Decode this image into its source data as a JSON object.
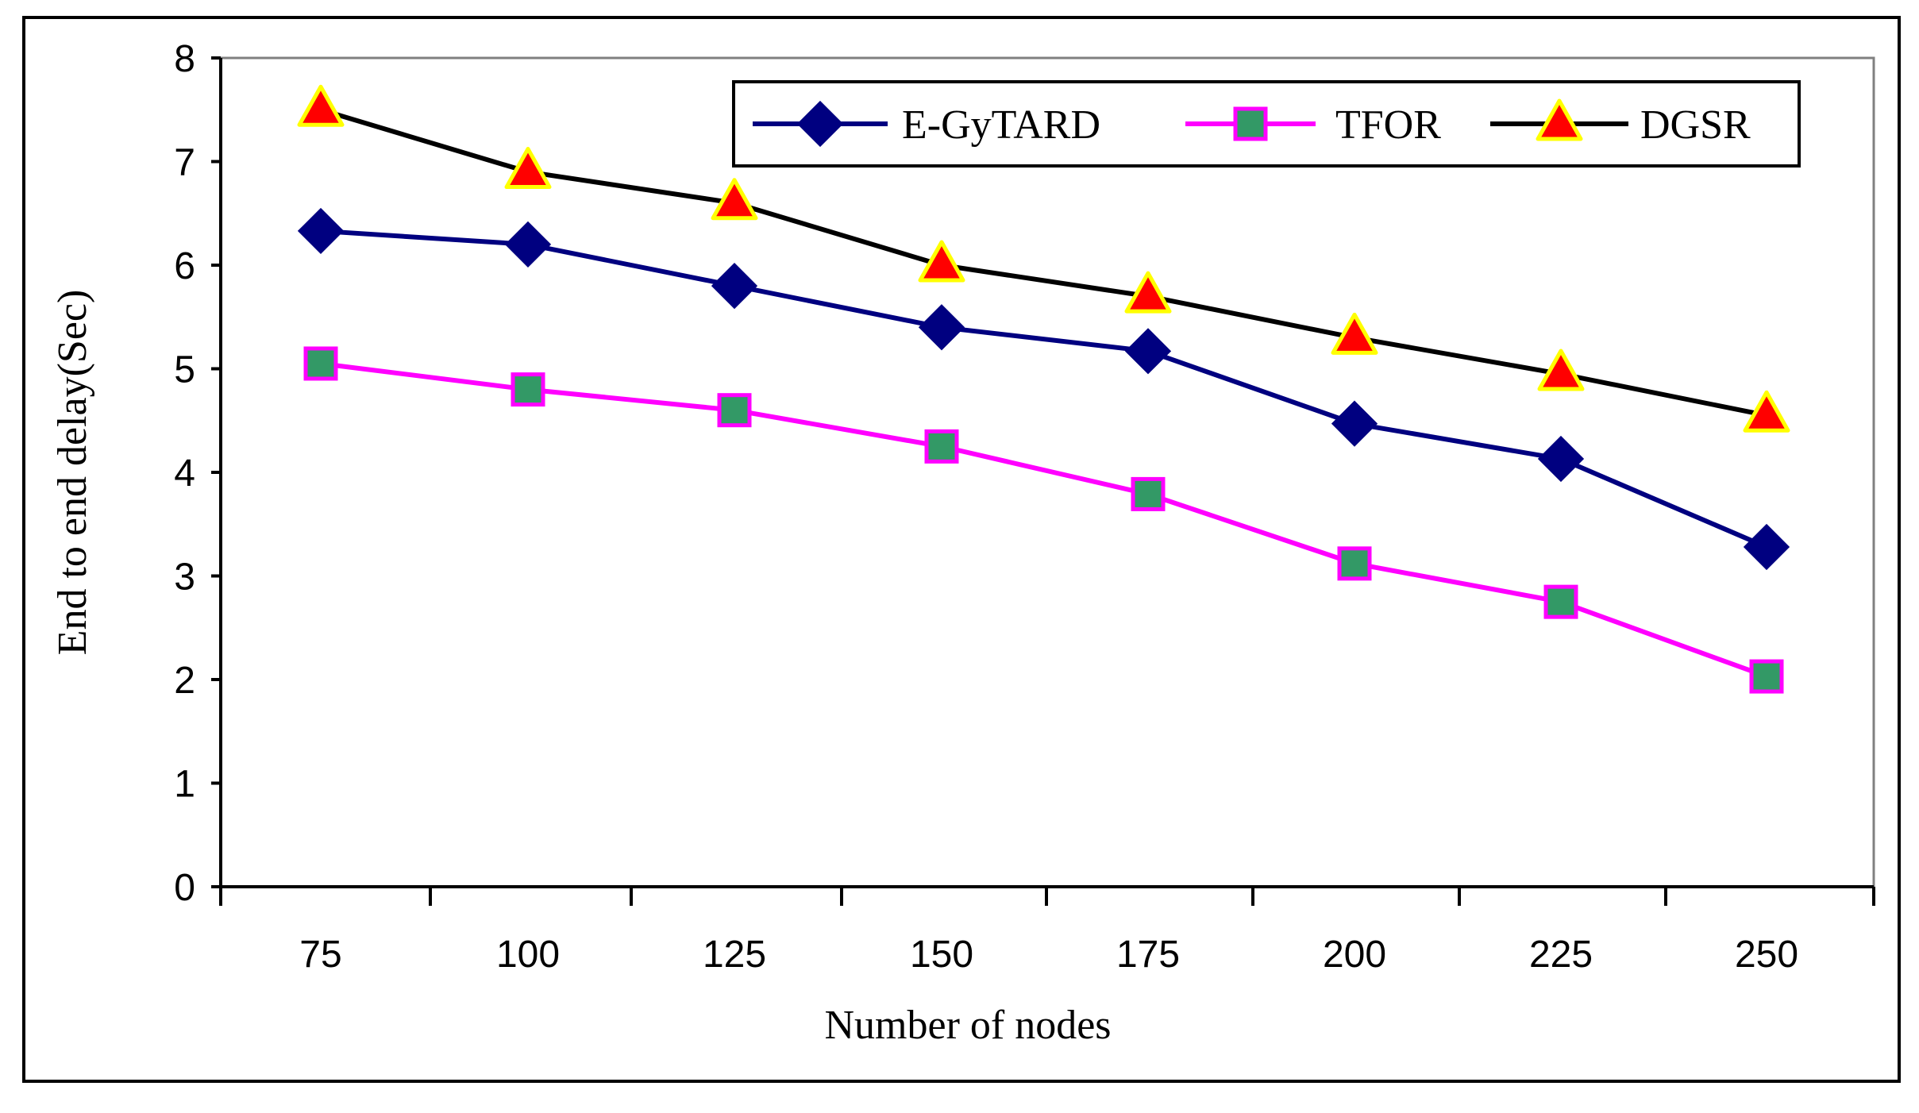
{
  "chart_data": {
    "type": "line",
    "title": "",
    "xlabel": "Number of nodes",
    "ylabel": "End to end delay(Sec)",
    "categories": [
      "75",
      "100",
      "125",
      "150",
      "175",
      "200",
      "225",
      "250"
    ],
    "ylim": [
      0,
      8
    ],
    "yticks": [
      "0",
      "1",
      "2",
      "3",
      "4",
      "5",
      "6",
      "7",
      "8"
    ],
    "grid": false,
    "legend_position": "top-right",
    "series": [
      {
        "name": "E-GyTARD",
        "values": [
          6.33,
          6.2,
          5.8,
          5.4,
          5.17,
          4.47,
          4.13,
          3.28
        ],
        "color": "#000080",
        "marker": "diamond",
        "marker_fill": "#000080",
        "marker_stroke": "#000080"
      },
      {
        "name": "TFOR",
        "values": [
          5.05,
          4.8,
          4.6,
          4.25,
          3.79,
          3.12,
          2.75,
          2.03
        ],
        "color": "#ff00ff",
        "marker": "square",
        "marker_fill": "#339966",
        "marker_stroke": "#ff00ff"
      },
      {
        "name": "DGSR",
        "values": [
          7.5,
          6.9,
          6.6,
          6.0,
          5.7,
          5.3,
          4.95,
          4.55
        ],
        "color": "#000000",
        "marker": "triangle",
        "marker_fill": "#ff0000",
        "marker_stroke": "#ffff00"
      }
    ]
  }
}
